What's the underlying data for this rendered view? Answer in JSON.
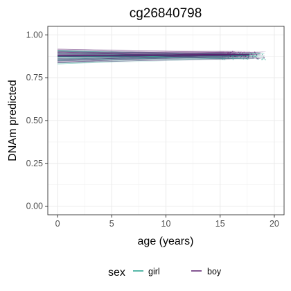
{
  "chart_data": {
    "type": "line",
    "title": "cg26840798",
    "xlabel": "age (years)",
    "ylabel": "DNAm predicted",
    "xlim": [
      -0.9,
      20.9
    ],
    "ylim": [
      -0.05,
      1.05
    ],
    "x_ticks": [
      0,
      5,
      10,
      15,
      20
    ],
    "x_tick_labels": [
      "0",
      "5",
      "10",
      "15",
      "20"
    ],
    "y_ticks": [
      0.0,
      0.25,
      0.5,
      0.75,
      1.0
    ],
    "y_tick_labels": [
      "0.00",
      "0.25",
      "0.50",
      "0.75",
      "1.00"
    ],
    "grid": true,
    "legend": {
      "title": "sex",
      "position": "bottom",
      "entries": [
        {
          "label": "girl",
          "color": "#21a18b"
        },
        {
          "label": "boy",
          "color": "#5b1f6e"
        }
      ]
    },
    "series": [
      {
        "name": "girl",
        "color": "#21a18b",
        "x_range": [
          0,
          19.2
        ],
        "start_mean": 0.873,
        "end_mean": 0.88,
        "start_range": [
          0.83,
          0.915
        ],
        "end_range": [
          0.855,
          0.895
        ]
      },
      {
        "name": "boy",
        "color": "#5b1f6e",
        "x_range": [
          0,
          19.2
        ],
        "start_mean": 0.878,
        "end_mean": 0.887,
        "start_range": [
          0.835,
          0.92
        ],
        "end_range": [
          0.86,
          0.905
        ]
      }
    ]
  }
}
